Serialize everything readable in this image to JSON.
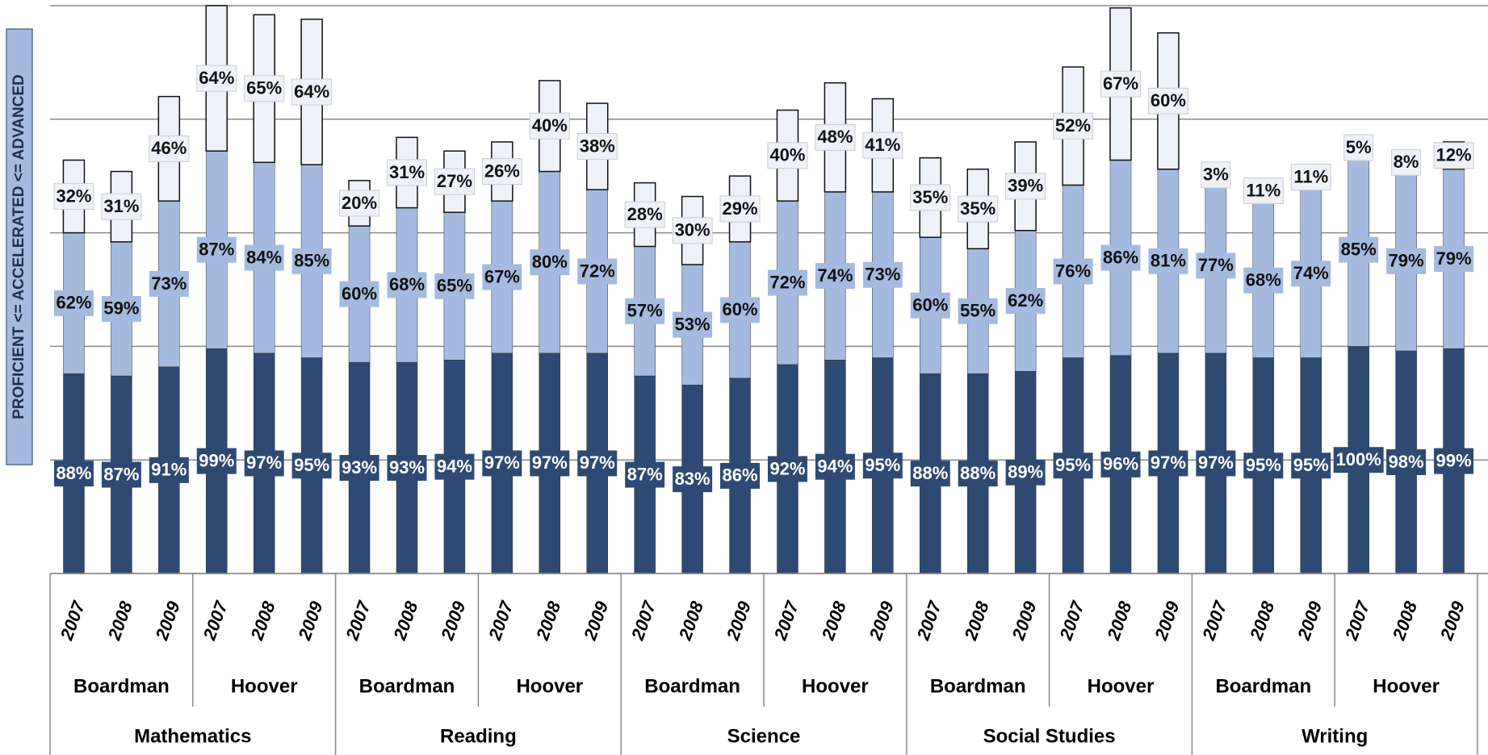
{
  "chart_data": {
    "type": "stacked-bar",
    "y_label": "PROFICIENT <= ACCELERATED <= ADVANCED",
    "categories": [
      "2007",
      "2008",
      "2009",
      "2007",
      "2008",
      "2009",
      "2007",
      "2008",
      "2009",
      "2007",
      "2008",
      "2009",
      "2007",
      "2008",
      "2009",
      "2007",
      "2008",
      "2009",
      "2007",
      "2008",
      "2009",
      "2007",
      "2008",
      "2009",
      "2007",
      "2008",
      "2009",
      "2007",
      "2008",
      "2009"
    ],
    "schools": [
      "Boardman",
      "Hoover",
      "Boardman",
      "Hoover",
      "Boardman",
      "Hoover",
      "Boardman",
      "Hoover",
      "Boardman",
      "Hoover"
    ],
    "subjects": [
      "Mathematics",
      "Reading",
      "Science",
      "Social Studies",
      "Writing"
    ],
    "series": [
      {
        "color": "#2e4a72",
        "values": [
          88,
          87,
          91,
          99,
          97,
          95,
          93,
          93,
          94,
          97,
          97,
          97,
          87,
          83,
          86,
          92,
          94,
          95,
          88,
          88,
          89,
          95,
          96,
          97,
          97,
          95,
          95,
          100,
          98,
          99
        ],
        "value_labels": [
          "88%",
          "87%",
          "91%",
          "99%",
          "97%",
          "95%",
          "93%",
          "93%",
          "94%",
          "97%",
          "97%",
          "97%",
          "87%",
          "83%",
          "86%",
          "92%",
          "94%",
          "95%",
          "88%",
          "88%",
          "89%",
          "95%",
          "96%",
          "97%",
          "97%",
          "95%",
          "95%",
          "100%",
          "98%",
          "99%"
        ]
      },
      {
        "color": "#a4bbdf",
        "values": [
          62,
          59,
          73,
          87,
          84,
          85,
          60,
          68,
          65,
          67,
          80,
          72,
          57,
          53,
          60,
          72,
          74,
          73,
          60,
          55,
          62,
          76,
          86,
          81,
          77,
          68,
          74,
          85,
          79,
          79
        ],
        "value_labels": [
          "62%",
          "59%",
          "73%",
          "87%",
          "84%",
          "85%",
          "60%",
          "68%",
          "65%",
          "67%",
          "80%",
          "72%",
          "57%",
          "53%",
          "60%",
          "72%",
          "74%",
          "73%",
          "60%",
          "55%",
          "62%",
          "76%",
          "86%",
          "81%",
          "77%",
          "68%",
          "74%",
          "85%",
          "79%",
          "79%"
        ]
      },
      {
        "color": "#eef2f8",
        "values": [
          32,
          31,
          46,
          64,
          65,
          64,
          20,
          31,
          27,
          26,
          40,
          38,
          28,
          30,
          29,
          40,
          48,
          41,
          35,
          35,
          39,
          52,
          67,
          60,
          3,
          11,
          11,
          5,
          8,
          12
        ],
        "value_labels": [
          "32%",
          "31%",
          "46%",
          "64%",
          "65%",
          "64%",
          "20%",
          "31%",
          "27%",
          "26%",
          "40%",
          "38%",
          "28%",
          "30%",
          "29%",
          "40%",
          "48%",
          "41%",
          "35%",
          "35%",
          "39%",
          "52%",
          "67%",
          "60%",
          "3%",
          "11%",
          "11%",
          "5%",
          "8%",
          "12%"
        ]
      }
    ],
    "ylim": [
      0,
      250
    ],
    "yticks": [
      0,
      50,
      100,
      150,
      200,
      250
    ],
    "grid": true
  }
}
